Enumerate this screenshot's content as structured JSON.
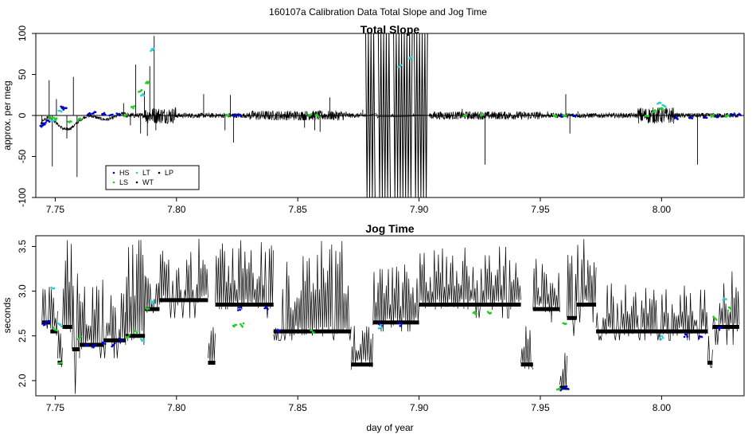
{
  "figure": {
    "title": "160107a   Calibration Data Total Slope and Jog Time",
    "xlabel": "day of year"
  },
  "colors": {
    "trace": "#000000",
    "hs": "#0000cc",
    "ls": "#22cc22",
    "lt": "#33cccc",
    "wt": "#000000",
    "lp": "#000000"
  },
  "legend": {
    "placement": "bottom-left",
    "entries": [
      "HS",
      "LT",
      "LP",
      "LS",
      "WT"
    ]
  },
  "chart_data": [
    {
      "type": "line",
      "title": "Total Slope",
      "xlabel": "",
      "ylabel": "approx. per meg",
      "xlim": [
        7.742,
        8.034
      ],
      "ylim": [
        -100,
        100
      ],
      "x_ticks": [
        "7.75",
        "7.80",
        "7.85",
        "7.90",
        "7.95",
        "8.00"
      ],
      "y_ticks": [
        "-100",
        "-50",
        "0",
        "50",
        "100"
      ],
      "zero_line": true,
      "spikes": [
        {
          "x": 7.7445,
          "y": -15
        },
        {
          "x": 7.7475,
          "y": 43
        },
        {
          "x": 7.7488,
          "y": -62
        },
        {
          "x": 7.7505,
          "y": 20
        },
        {
          "x": 7.7548,
          "y": -28
        },
        {
          "x": 7.7575,
          "y": 47
        },
        {
          "x": 7.759,
          "y": -75
        },
        {
          "x": 7.7782,
          "y": 15
        },
        {
          "x": 7.781,
          "y": -12
        },
        {
          "x": 7.7832,
          "y": 62
        },
        {
          "x": 7.7852,
          "y": -22
        },
        {
          "x": 7.7868,
          "y": 30
        },
        {
          "x": 7.788,
          "y": -25
        },
        {
          "x": 7.789,
          "y": 60
        },
        {
          "x": 7.7908,
          "y": 97
        },
        {
          "x": 7.7915,
          "y": -18
        },
        {
          "x": 7.7995,
          "y": 10
        },
        {
          "x": 7.8112,
          "y": 26
        },
        {
          "x": 7.82,
          "y": -18
        },
        {
          "x": 7.8222,
          "y": 25
        },
        {
          "x": 7.8235,
          "y": -33
        },
        {
          "x": 7.8528,
          "y": -15
        },
        {
          "x": 7.857,
          "y": -18
        },
        {
          "x": 7.8592,
          "y": -20
        },
        {
          "x": 7.8632,
          "y": 22
        },
        {
          "x": 7.8768,
          "y": 7
        },
        {
          "x": 7.9178,
          "y": 8
        },
        {
          "x": 7.9272,
          "y": -60
        },
        {
          "x": 7.953,
          "y": 5
        },
        {
          "x": 7.9605,
          "y": 26
        },
        {
          "x": 7.9622,
          "y": -22
        },
        {
          "x": 7.9655,
          "y": 5
        },
        {
          "x": 7.991,
          "y": 5
        },
        {
          "x": 8.0008,
          "y": 2
        },
        {
          "x": 8.0148,
          "y": -60
        },
        {
          "x": 8.03,
          "y": 4
        }
      ],
      "bursts": [
        {
          "start": 7.878,
          "end": 7.8822,
          "amplitude": 100
        },
        {
          "start": 7.8832,
          "end": 7.8885,
          "amplitude": 100
        },
        {
          "start": 7.8895,
          "end": 7.8975,
          "amplitude": 100
        },
        {
          "start": 7.898,
          "end": 7.904,
          "amplitude": 100
        }
      ],
      "oscillation": {
        "start": 7.744,
        "end": 7.779,
        "description": "damped wave from -15 up to 12 and back"
      },
      "points": {
        "HS": [
          [
            7.7445,
            -13
          ],
          [
            7.7455,
            -10
          ],
          [
            7.747,
            -7
          ],
          [
            7.753,
            10
          ],
          [
            7.754,
            8
          ],
          [
            7.764,
            2
          ],
          [
            7.766,
            3
          ],
          [
            7.77,
            2
          ],
          [
            7.773,
            1
          ],
          [
            7.776,
            1
          ],
          [
            7.824,
            0
          ],
          [
            7.826,
            0
          ],
          [
            7.959,
            0
          ],
          [
            7.964,
            0
          ],
          [
            8.006,
            -3
          ],
          [
            8.012,
            -2
          ],
          [
            8.018,
            -2
          ],
          [
            8.023,
            -2
          ],
          [
            8.029,
            1
          ],
          [
            8.032,
            1
          ]
        ],
        "LS": [
          [
            7.748,
            -3
          ],
          [
            7.75,
            -4
          ],
          [
            7.756,
            -8
          ],
          [
            7.76,
            -5
          ],
          [
            7.779,
            0
          ],
          [
            7.782,
            10
          ],
          [
            7.785,
            30
          ],
          [
            7.788,
            40
          ],
          [
            7.821,
            1
          ],
          [
            7.855,
            0
          ],
          [
            7.858,
            0
          ],
          [
            7.919,
            0
          ],
          [
            7.926,
            0
          ],
          [
            7.956,
            0
          ],
          [
            7.96,
            0
          ],
          [
            7.994,
            0
          ],
          [
            7.997,
            5
          ],
          [
            8.0,
            8
          ],
          [
            8.021,
            0
          ],
          [
            8.027,
            0
          ]
        ],
        "LT": [
          [
            7.749,
            -5
          ],
          [
            7.752,
            5
          ],
          [
            7.786,
            25
          ],
          [
            7.79,
            80
          ],
          [
            7.892,
            60
          ],
          [
            7.8965,
            70
          ],
          [
            7.999,
            15
          ],
          [
            8.001,
            12
          ]
        ]
      }
    },
    {
      "type": "line",
      "title": "Jog Time",
      "xlabel": "day of year",
      "ylabel": "seconds",
      "xlim": [
        7.742,
        8.034
      ],
      "ylim": [
        1.83,
        3.62
      ],
      "x_ticks": [
        "7.75",
        "7.80",
        "7.85",
        "7.90",
        "7.95",
        "8.00"
      ],
      "y_ticks": [
        "2.0",
        "2.5",
        "3.0",
        "3.5"
      ],
      "segments": [
        {
          "start": 7.7445,
          "end": 7.748,
          "low": 2.58,
          "high": 3.28,
          "level": 2.65
        },
        {
          "start": 7.748,
          "end": 7.751,
          "low": 2.42,
          "high": 3.05,
          "level": 2.55
        },
        {
          "start": 7.751,
          "end": 7.753,
          "low": 2.15,
          "high": 2.65,
          "level": 2.2
        },
        {
          "start": 7.753,
          "end": 7.757,
          "low": 2.4,
          "high": 3.6,
          "level": 2.6
        },
        {
          "start": 7.757,
          "end": 7.76,
          "low": 1.85,
          "high": 3.6,
          "level": 2.35
        },
        {
          "start": 7.76,
          "end": 7.77,
          "low": 2.25,
          "high": 3.2,
          "level": 2.4
        },
        {
          "start": 7.77,
          "end": 7.779,
          "low": 2.25,
          "high": 3.0,
          "level": 2.45
        },
        {
          "start": 7.779,
          "end": 7.787,
          "low": 2.4,
          "high": 3.6,
          "level": 2.5
        },
        {
          "start": 7.787,
          "end": 7.793,
          "low": 2.7,
          "high": 3.2,
          "level": 2.8
        },
        {
          "start": 7.793,
          "end": 7.813,
          "low": 2.7,
          "high": 3.6,
          "level": 2.9
        },
        {
          "start": 7.813,
          "end": 7.816,
          "low": 2.15,
          "high": 2.6,
          "level": 2.2
        },
        {
          "start": 7.816,
          "end": 7.84,
          "low": 2.7,
          "high": 3.6,
          "level": 2.85
        },
        {
          "start": 7.84,
          "end": 7.856,
          "low": 2.45,
          "high": 3.4,
          "level": 2.55
        },
        {
          "start": 7.856,
          "end": 7.872,
          "low": 2.45,
          "high": 3.6,
          "level": 2.55
        },
        {
          "start": 7.872,
          "end": 7.881,
          "low": 2.15,
          "high": 2.65,
          "level": 2.18
        },
        {
          "start": 7.881,
          "end": 7.9,
          "low": 2.55,
          "high": 3.3,
          "level": 2.65
        },
        {
          "start": 7.9,
          "end": 7.942,
          "low": 2.7,
          "high": 3.5,
          "level": 2.85
        },
        {
          "start": 7.942,
          "end": 7.947,
          "low": 2.15,
          "high": 2.65,
          "level": 2.18
        },
        {
          "start": 7.947,
          "end": 7.958,
          "low": 2.65,
          "high": 3.45,
          "level": 2.8
        },
        {
          "start": 7.958,
          "end": 7.961,
          "low": 1.88,
          "high": 2.35,
          "level": 1.92
        },
        {
          "start": 7.961,
          "end": 7.965,
          "low": 2.5,
          "high": 3.6,
          "level": 2.7
        },
        {
          "start": 7.965,
          "end": 7.973,
          "low": 2.65,
          "high": 3.6,
          "level": 2.85
        },
        {
          "start": 7.973,
          "end": 8.019,
          "low": 2.45,
          "high": 3.1,
          "level": 2.55
        },
        {
          "start": 8.019,
          "end": 8.021,
          "low": 2.15,
          "high": 2.65,
          "level": 2.2
        },
        {
          "start": 8.021,
          "end": 8.032,
          "low": 2.4,
          "high": 3.25,
          "level": 2.6
        }
      ],
      "points": {
        "HS": [
          [
            7.7455,
            2.64
          ],
          [
            7.747,
            2.66
          ],
          [
            7.763,
            2.4
          ],
          [
            7.766,
            2.38
          ],
          [
            7.77,
            2.42
          ],
          [
            7.774,
            2.4
          ],
          [
            7.777,
            2.45
          ],
          [
            7.826,
            2.8
          ],
          [
            7.837,
            2.8
          ],
          [
            7.842,
            2.55
          ],
          [
            7.884,
            2.63
          ],
          [
            7.892,
            2.63
          ],
          [
            7.959,
            1.9
          ],
          [
            7.961,
            1.92
          ],
          [
            8.01,
            2.5
          ],
          [
            8.016,
            2.48
          ],
          [
            8.024,
            2.58
          ]
        ],
        "LS": [
          [
            7.75,
            2.58
          ],
          [
            7.752,
            2.2
          ],
          [
            7.76,
            2.48
          ],
          [
            7.78,
            2.5
          ],
          [
            7.783,
            2.55
          ],
          [
            7.788,
            2.8
          ],
          [
            7.824,
            2.62
          ],
          [
            7.827,
            2.62
          ],
          [
            7.856,
            2.55
          ],
          [
            7.923,
            2.75
          ],
          [
            7.929,
            2.75
          ],
          [
            7.9575,
            1.9
          ],
          [
            7.96,
            2.65
          ],
          [
            8.022,
            2.7
          ],
          [
            8.028,
            2.8
          ]
        ],
        "LT": [
          [
            7.749,
            3.02
          ],
          [
            7.752,
            2.62
          ],
          [
            7.786,
            2.45
          ],
          [
            7.79,
            2.88
          ],
          [
            7.884,
            2.6
          ],
          [
            8.0,
            2.48
          ],
          [
            8.026,
            2.9
          ]
        ]
      }
    }
  ]
}
